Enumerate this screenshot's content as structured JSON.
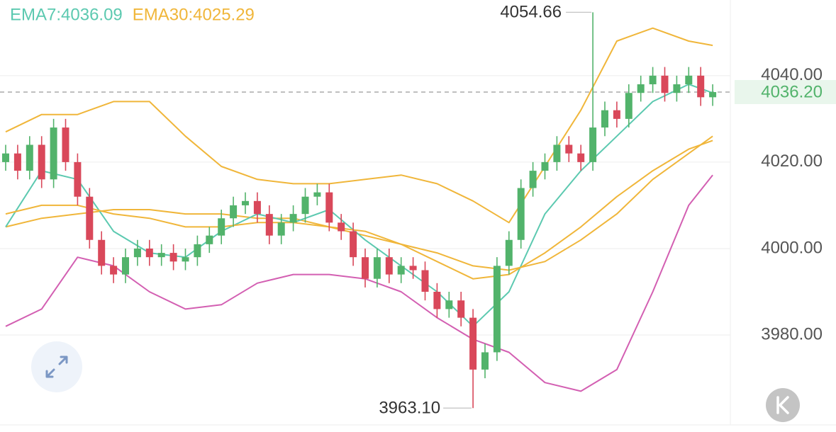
{
  "chart_data": {
    "type": "candlestick",
    "legend": [
      {
        "text": "EMA7:4036.09",
        "color": "#5cc9b0"
      },
      {
        "text": "EMA30:4025.29",
        "color": "#f0b63a"
      }
    ],
    "up_color": "#52b36b",
    "down_color": "#d9485a",
    "open": [
      4020,
      4022,
      4018,
      4024,
      4016,
      4028,
      4020,
      4012,
      4002,
      3996,
      3994,
      3998,
      4000,
      3998,
      3999,
      3997,
      3998,
      4001,
      4003,
      4007,
      4010,
      4011,
      4008,
      4003,
      4006,
      4008,
      4012,
      4013,
      4006,
      4004,
      3998,
      3993,
      3998,
      3994,
      3996,
      3995,
      3990,
      3986,
      3988,
      3984,
      3972,
      3976,
      3996,
      4002,
      4014,
      4018,
      4020,
      4024,
      4022,
      4020,
      4028,
      4032,
      4030,
      4036,
      4038,
      4040,
      4036,
      4038,
      4040,
      4035
    ],
    "high": [
      4024,
      4024,
      4026,
      4026,
      4030,
      4030,
      4022,
      4014,
      4004,
      3998,
      4000,
      4002,
      4002,
      4001,
      4001,
      4000,
      4003,
      4005,
      4009,
      4012,
      4013,
      4013,
      4010,
      4008,
      4010,
      4014,
      4015,
      4015,
      4008,
      4006,
      4000,
      4000,
      4000,
      3998,
      3998,
      3997,
      3992,
      3990,
      3990,
      3986,
      3978,
      3998,
      4004,
      4016,
      4020,
      4022,
      4026,
      4026,
      4024,
      4054.66,
      4034,
      4034,
      4038,
      4040,
      4042,
      4042,
      4040,
      4042,
      4042,
      4038
    ],
    "low": [
      4018,
      4016,
      4016,
      4014,
      4014,
      4018,
      4010,
      4000,
      3994,
      3992,
      3992,
      3996,
      3996,
      3996,
      3995,
      3995,
      3996,
      3999,
      4001,
      4005,
      4008,
      4006,
      4001,
      4001,
      4004,
      4006,
      4010,
      4004,
      4002,
      3996,
      3991,
      3991,
      3992,
      3992,
      3993,
      3988,
      3984,
      3984,
      3982,
      3963.1,
      3970,
      3974,
      3994,
      4000,
      4012,
      4016,
      4018,
      4020,
      4018,
      4018,
      4026,
      4028,
      4028,
      4034,
      4036,
      4034,
      4034,
      4036,
      4033,
      4033
    ],
    "close": [
      4022,
      4018,
      4024,
      4016,
      4028,
      4020,
      4012,
      4002,
      3996,
      3994,
      3998,
      4000,
      3998,
      3999,
      3997,
      3998,
      4001,
      4003,
      4007,
      4010,
      4011,
      4008,
      4003,
      4006,
      4008,
      4012,
      4013,
      4006,
      4004,
      3998,
      3993,
      3998,
      3994,
      3996,
      3995,
      3990,
      3986,
      3988,
      3984,
      3972,
      3976,
      3996,
      4002,
      4014,
      4018,
      4020,
      4024,
      4022,
      4020,
      4028,
      4032,
      4030,
      4036,
      4038,
      4040,
      4036,
      4038,
      4040,
      4035,
      4036.2
    ],
    "lines": [
      {
        "color": "#f0b63a",
        "x": [
          0,
          3,
          6,
          9,
          12,
          15,
          18,
          21,
          24,
          27,
          30,
          33,
          36,
          39,
          42,
          45,
          48,
          51,
          54,
          57,
          59
        ],
        "values": [
          4027,
          4031,
          4031,
          4034,
          4034,
          4026,
          4019,
          4016,
          4015,
          4015,
          4016,
          4017,
          4015,
          4011,
          4006,
          4019,
          4032,
          4048,
          4051,
          4048,
          4047
        ]
      },
      {
        "color": "#f0b63a",
        "x": [
          0,
          3,
          6,
          9,
          12,
          15,
          18,
          21,
          24,
          27,
          30,
          33,
          36,
          39,
          42,
          45,
          48,
          51,
          54,
          57,
          59
        ],
        "values": [
          4005,
          4007,
          4008,
          4009,
          4009,
          4008,
          4008,
          4007,
          4007,
          4005,
          4003,
          4001,
          3999,
          3996,
          3995,
          3997,
          4002,
          4008,
          4016,
          4022,
          4026
        ]
      },
      {
        "color": "#d35fb2",
        "x": [
          0,
          3,
          6,
          9,
          12,
          15,
          18,
          21,
          24,
          27,
          30,
          33,
          36,
          39,
          42,
          45,
          48,
          51,
          54,
          57,
          59
        ],
        "values": [
          3982,
          3986,
          3998,
          3996,
          3990,
          3986,
          3987,
          3992,
          3994,
          3994,
          3993,
          3990,
          3984,
          3979,
          3976,
          3969,
          3967,
          3972,
          3990,
          4010,
          4017
        ]
      },
      {
        "color": "#5cc9b0",
        "x": [
          0,
          3,
          6,
          9,
          12,
          15,
          18,
          21,
          24,
          27,
          30,
          33,
          36,
          39,
          42,
          45,
          48,
          51,
          54,
          57,
          59
        ],
        "values": [
          4005,
          4018,
          4016,
          4004,
          3999,
          3998,
          4004,
          4008,
          4006,
          4009,
          4002,
          3996,
          3990,
          3982,
          3990,
          4008,
          4018,
          4026,
          4034,
          4038,
          4036
        ]
      },
      {
        "color": "#f0b63a",
        "x": [
          0,
          3,
          6,
          9,
          12,
          15,
          18,
          21,
          24,
          27,
          30,
          33,
          36,
          39,
          42,
          45,
          48,
          51,
          54,
          57,
          59
        ],
        "values": [
          4008,
          4010,
          4010,
          4008,
          4007,
          4005,
          4005,
          4006,
          4006,
          4005,
          4004,
          4001,
          3997,
          3993,
          3994,
          3999,
          4005,
          4012,
          4018,
          4023,
          4025
        ]
      }
    ],
    "high_label": 4054.66,
    "low_label": {
      "value": 3963.1,
      "label": "3963.10"
    },
    "last_price": {
      "value": 4036.2,
      "label": "4036.20"
    },
    "ylim": [
      3959.2,
      4057.5
    ],
    "yticks": [
      {
        "value": 3980,
        "label": "3980.00"
      },
      {
        "value": 4000,
        "label": "4000.00"
      },
      {
        "value": 4020,
        "label": "4020.00"
      },
      {
        "value": 4040,
        "label": "4040.00"
      }
    ],
    "grid": true
  }
}
